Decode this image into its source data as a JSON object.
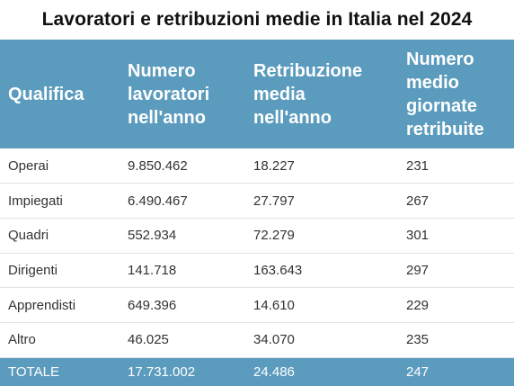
{
  "chart_data": {
    "type": "table",
    "title": "Lavoratori e retribuzioni medie in Italia nel 2024",
    "columns": [
      "Qualifica",
      "Numero\nlavoratori\nnell'anno",
      "Retribuzione\nmedia\nnell'anno",
      "Numero\nmedio\ngiornate\nretribuite"
    ],
    "rows": [
      [
        "Operai",
        "9.850.462",
        "18.227",
        "231"
      ],
      [
        "Impiegati",
        "6.490.467",
        "27.797",
        "267"
      ],
      [
        "Quadri",
        "552.934",
        "72.279",
        "301"
      ],
      [
        "Dirigenti",
        "141.718",
        "163.643",
        "297"
      ],
      [
        "Apprendisti",
        "649.396",
        "14.610",
        "229"
      ],
      [
        "Altro",
        "46.025",
        "34.070",
        "235"
      ]
    ],
    "total": [
      "TOTALE",
      "17.731.002",
      "24.486",
      "247"
    ]
  },
  "colors": {
    "header_bg": "#5b9bbd",
    "header_text": "#ffffff",
    "row_divider": "#e2e2e2"
  }
}
